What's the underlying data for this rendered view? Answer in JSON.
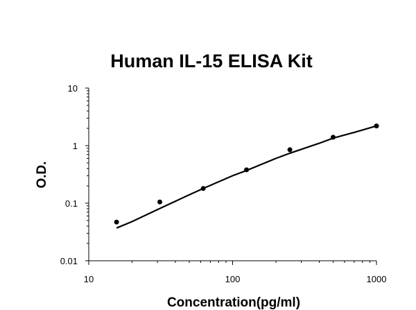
{
  "chart_data": {
    "type": "scatter",
    "title": "Human IL-15 ELISA Kit",
    "xlabel": "Concentration(pg/ml)",
    "ylabel": "O.D.",
    "xscale": "log",
    "yscale": "log",
    "xlim": [
      10,
      1000
    ],
    "ylim": [
      0.01,
      10
    ],
    "x_ticks": [
      "10",
      "100",
      "1000"
    ],
    "y_ticks": [
      "0.01",
      "0.1",
      "1",
      "10"
    ],
    "grid": false,
    "legend": "none",
    "series": [
      {
        "points": [
          {
            "x": 15.6,
            "y": 0.047
          },
          {
            "x": 31.2,
            "y": 0.105
          },
          {
            "x": 62.5,
            "y": 0.18
          },
          {
            "x": 125,
            "y": 0.38
          },
          {
            "x": 250,
            "y": 0.85
          },
          {
            "x": 500,
            "y": 1.4
          },
          {
            "x": 1000,
            "y": 2.2
          }
        ]
      }
    ],
    "fit_curve": {
      "x": [
        15.6,
        20,
        31.2,
        50,
        62.5,
        100,
        125,
        200,
        250,
        400,
        500,
        700,
        1000
      ],
      "y": [
        0.037,
        0.048,
        0.081,
        0.14,
        0.18,
        0.3,
        0.37,
        0.6,
        0.74,
        1.1,
        1.35,
        1.7,
        2.2
      ]
    },
    "colors": {
      "marker": "#000000",
      "line": "#000000",
      "axis": "#000000"
    }
  }
}
